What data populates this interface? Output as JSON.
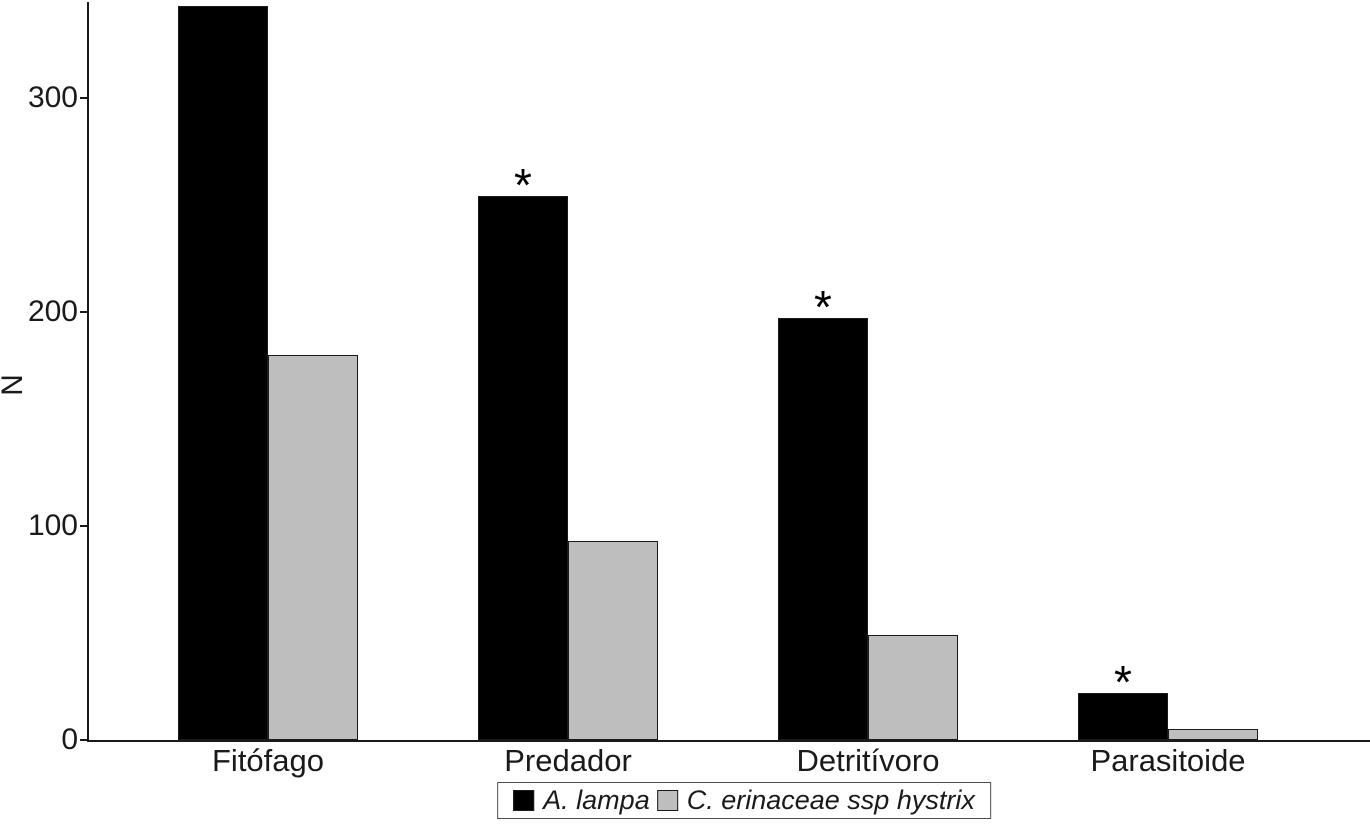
{
  "chart_data": {
    "type": "bar",
    "title": "",
    "xlabel": "",
    "ylabel": "N",
    "categories": [
      "Fitófago",
      "Predador",
      "Detritívoro",
      "Parasitoide"
    ],
    "series": [
      {
        "name": "A. lampa",
        "color": "#000000",
        "values": [
          343,
          254,
          197,
          22
        ],
        "significant": [
          false,
          true,
          true,
          true
        ]
      },
      {
        "name": "C. erinaceae ssp hystrix",
        "color": "#bebebe",
        "values": [
          180,
          93,
          49,
          5
        ],
        "significant": [
          false,
          false,
          false,
          false
        ]
      }
    ],
    "yticks": [
      0,
      100,
      200,
      300
    ],
    "ylim": [
      0,
      345
    ],
    "grid": false,
    "legend_position": "bottom",
    "significance_marker": "*"
  },
  "legend": {
    "items": [
      {
        "label": "A. lampa",
        "color": "#000000"
      },
      {
        "label": "C. erinaceae ssp hystrix",
        "color": "#bebebe"
      }
    ]
  }
}
